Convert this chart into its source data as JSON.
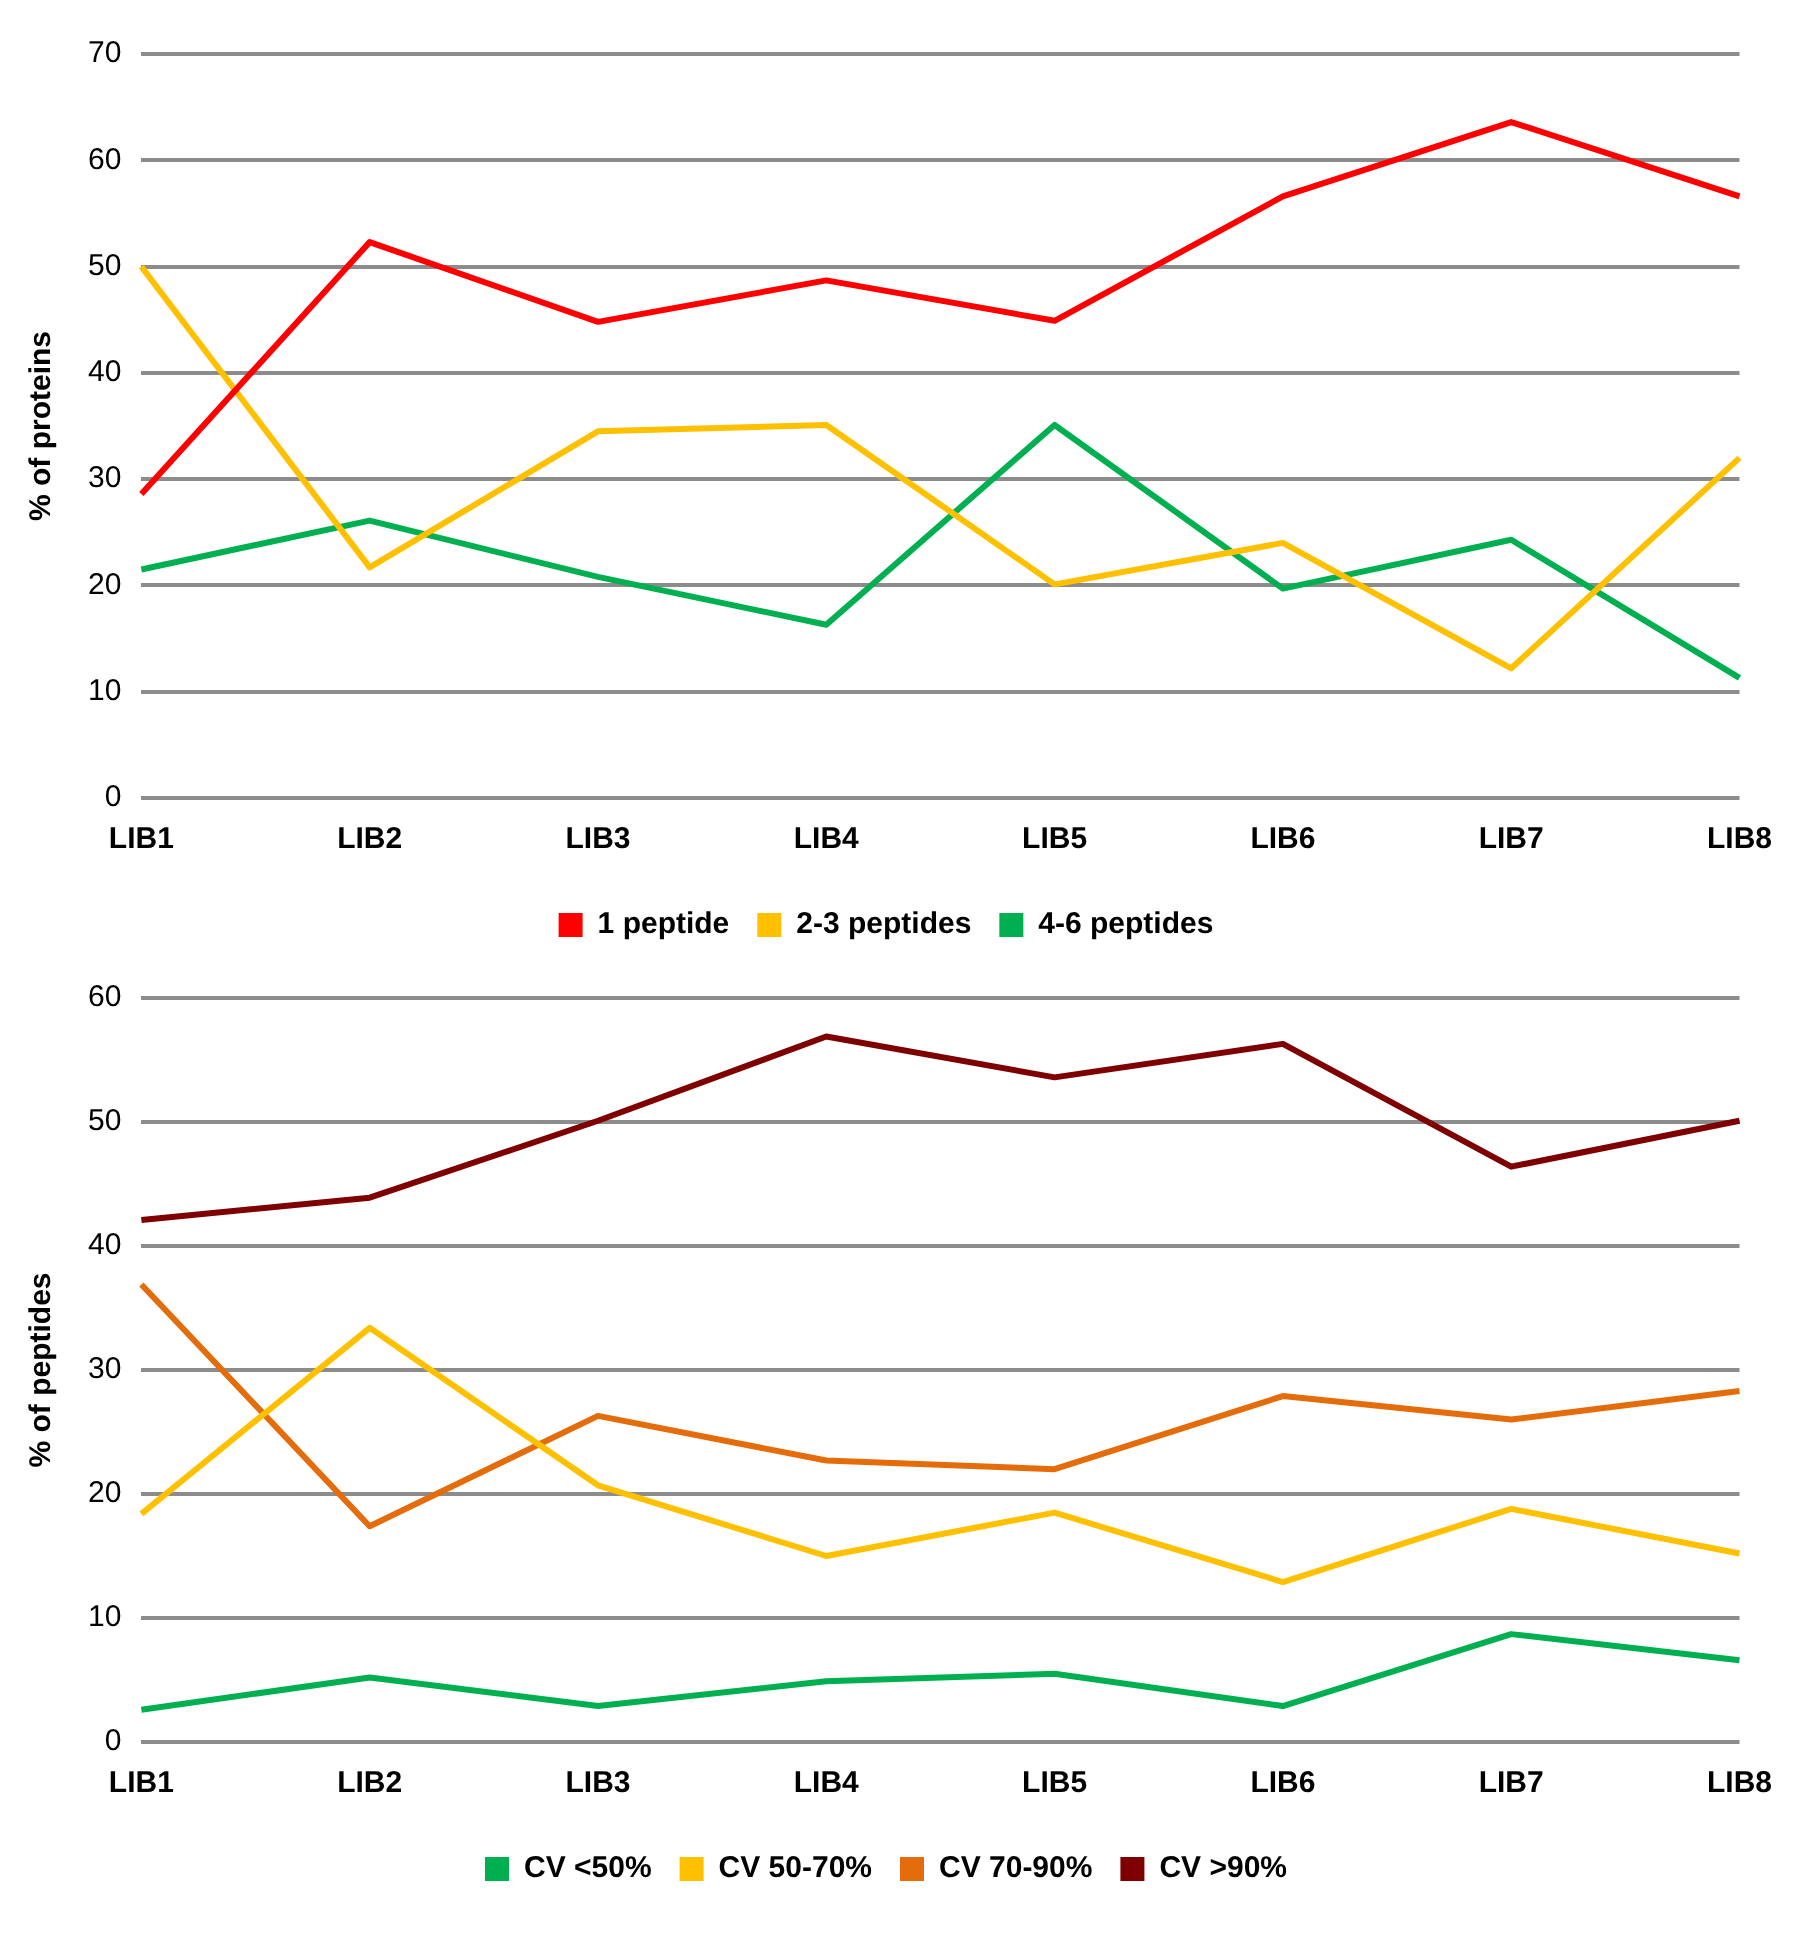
{
  "chart_data": [
    {
      "type": "line",
      "ylabel": "% of proteins",
      "categories": [
        "LIB1",
        "LIB2",
        "LIB3",
        "LIB4",
        "LIB5",
        "LIB6",
        "LIB7",
        "LIB8"
      ],
      "ylim": [
        0,
        70
      ],
      "yticks": [
        0,
        10,
        20,
        30,
        40,
        50,
        60,
        70
      ],
      "grid": "y",
      "legend": "bottom",
      "marker": "none",
      "line_style": "solid",
      "series": [
        {
          "name": "1 peptide",
          "color": "#ff0000",
          "values": [
            28.6,
            52.3,
            44.8,
            48.7,
            44.9,
            56.6,
            63.6,
            56.6
          ]
        },
        {
          "name": "2-3 peptides",
          "color": "#ffc000",
          "values": [
            50,
            21.7,
            34.5,
            35.1,
            20.1,
            24,
            12.2,
            32
          ]
        },
        {
          "name": "4-6 peptides",
          "color": "#00b050",
          "values": [
            21.5,
            26.1,
            20.8,
            16.3,
            35.1,
            19.7,
            24.3,
            11.3
          ]
        }
      ]
    },
    {
      "type": "line",
      "ylabel": "% of peptides",
      "categories": [
        "LIB1",
        "LIB2",
        "LIB3",
        "LIB4",
        "LIB5",
        "LIB6",
        "LIB7",
        "LIB8"
      ],
      "ylim": [
        0,
        60
      ],
      "yticks": [
        0,
        10,
        20,
        30,
        40,
        50,
        60
      ],
      "grid": "y",
      "legend": "bottom",
      "marker": "none",
      "line_style": "solid",
      "series": [
        {
          "name": "CV <50%",
          "color": "#00b050",
          "values": [
            2.6,
            5.2,
            2.9,
            4.9,
            5.5,
            2.9,
            8.7,
            6.6
          ]
        },
        {
          "name": "CV 50-70%",
          "color": "#ffc000",
          "values": [
            18.4,
            33.4,
            20.7,
            15.0,
            18.5,
            12.9,
            18.8,
            15.2
          ]
        },
        {
          "name": "CV 70-90%",
          "color": "#e46c0a",
          "values": [
            36.9,
            17.4,
            26.3,
            22.7,
            22.0,
            27.9,
            26.0,
            28.3
          ]
        },
        {
          "name": "CV >90%",
          "color": "#7f0000",
          "values": [
            42.1,
            43.9,
            50.1,
            56.9,
            53.6,
            56.3,
            46.4,
            50.1
          ]
        }
      ]
    }
  ]
}
